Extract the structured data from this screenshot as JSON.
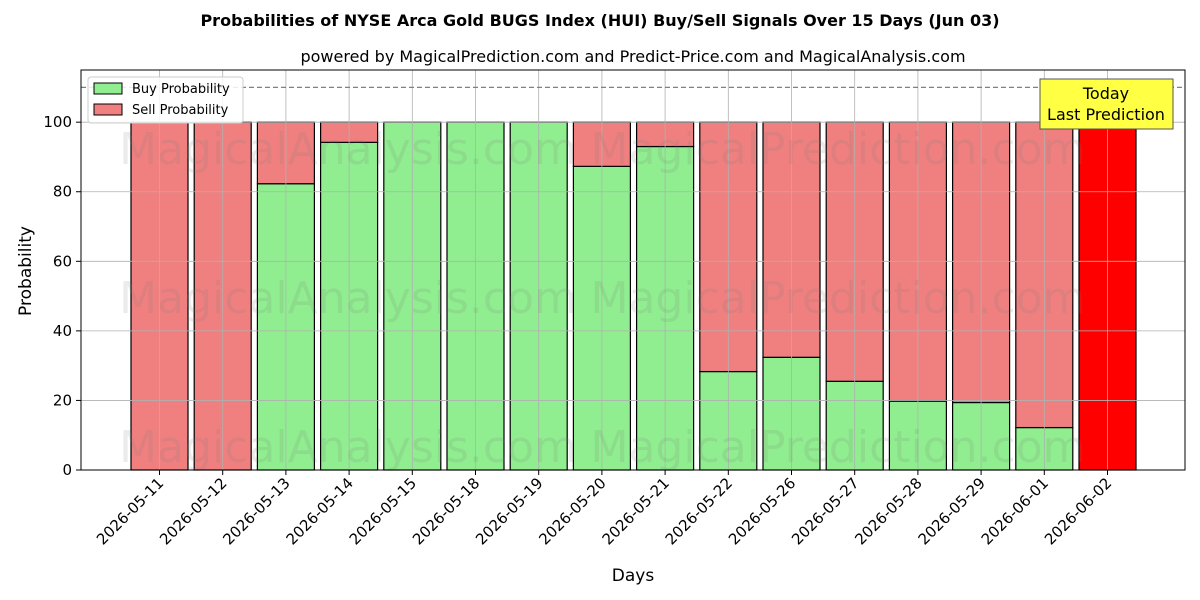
{
  "chart_data": {
    "type": "bar",
    "stacked": true,
    "title": "Probabilities of NYSE Arca Gold BUGS Index (HUI) Buy/Sell Signals Over 15 Days (Jun 03)",
    "subtitle": "powered by MagicalPrediction.com and Predict-Price.com and MagicalAnalysis.com",
    "xlabel": "Days",
    "ylabel": "Probability",
    "ylim": [
      0,
      115
    ],
    "yticks": [
      0,
      20,
      40,
      60,
      80,
      100
    ],
    "grid": true,
    "reference_line": 110,
    "legend_position": "top-left",
    "categories": [
      "2026-05-11",
      "2026-05-12",
      "2026-05-13",
      "2026-05-14",
      "2026-05-15",
      "2026-05-18",
      "2026-05-19",
      "2026-05-20",
      "2026-05-21",
      "2026-05-22",
      "2026-05-26",
      "2026-05-27",
      "2026-05-28",
      "2026-05-29",
      "2026-06-01",
      "2026-06-02"
    ],
    "series": [
      {
        "name": "Buy Probability",
        "color": "#90ee90",
        "values": [
          0,
          0,
          82.3,
          94.2,
          100,
          100,
          100,
          87.3,
          93.0,
          28.3,
          32.4,
          25.5,
          19.8,
          19.4,
          12.2,
          0
        ]
      },
      {
        "name": "Sell Probability",
        "color": "#f08080",
        "values": [
          100,
          100,
          17.7,
          5.8,
          0,
          0,
          0,
          12.7,
          7.0,
          71.7,
          67.6,
          74.5,
          80.2,
          80.6,
          87.8,
          100
        ]
      }
    ],
    "highlight": {
      "index": 15,
      "color": "#ff0000"
    },
    "annotation": {
      "lines": [
        "Today",
        "Last Prediction"
      ],
      "bg_color": "#ffff44"
    },
    "watermarks": [
      "MagicalAnalysis.com",
      "MagicalPrediction.com"
    ]
  }
}
